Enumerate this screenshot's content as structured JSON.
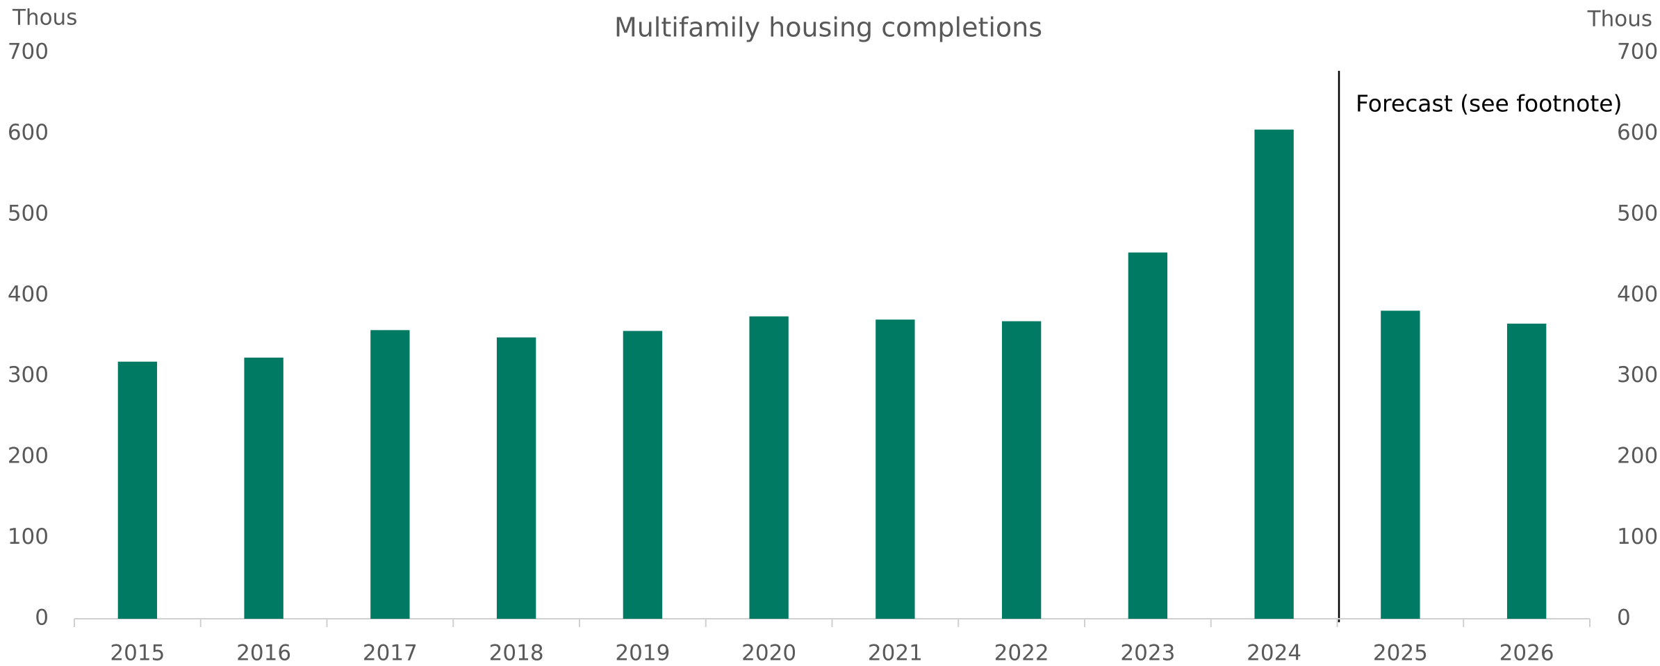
{
  "chart_data": {
    "type": "bar",
    "title": "Multifamily housing completions",
    "y_label": "Thous",
    "y2_label": "Thous",
    "annotation": "Forecast (see footnote)",
    "categories": [
      "2015",
      "2016",
      "2017",
      "2018",
      "2019",
      "2020",
      "2021",
      "2022",
      "2023",
      "2024",
      "2025",
      "2026"
    ],
    "values": [
      318,
      323,
      357,
      348,
      356,
      374,
      370,
      368,
      453,
      605,
      381,
      365
    ],
    "color": "#007a63",
    "ylim": [
      0,
      700
    ],
    "yticks": [
      0,
      100,
      200,
      300,
      400,
      500,
      600,
      700
    ],
    "y2lim": [
      0,
      700
    ],
    "y2ticks": [
      0,
      100,
      200,
      300,
      400,
      500,
      600,
      700
    ],
    "grid": false
  }
}
